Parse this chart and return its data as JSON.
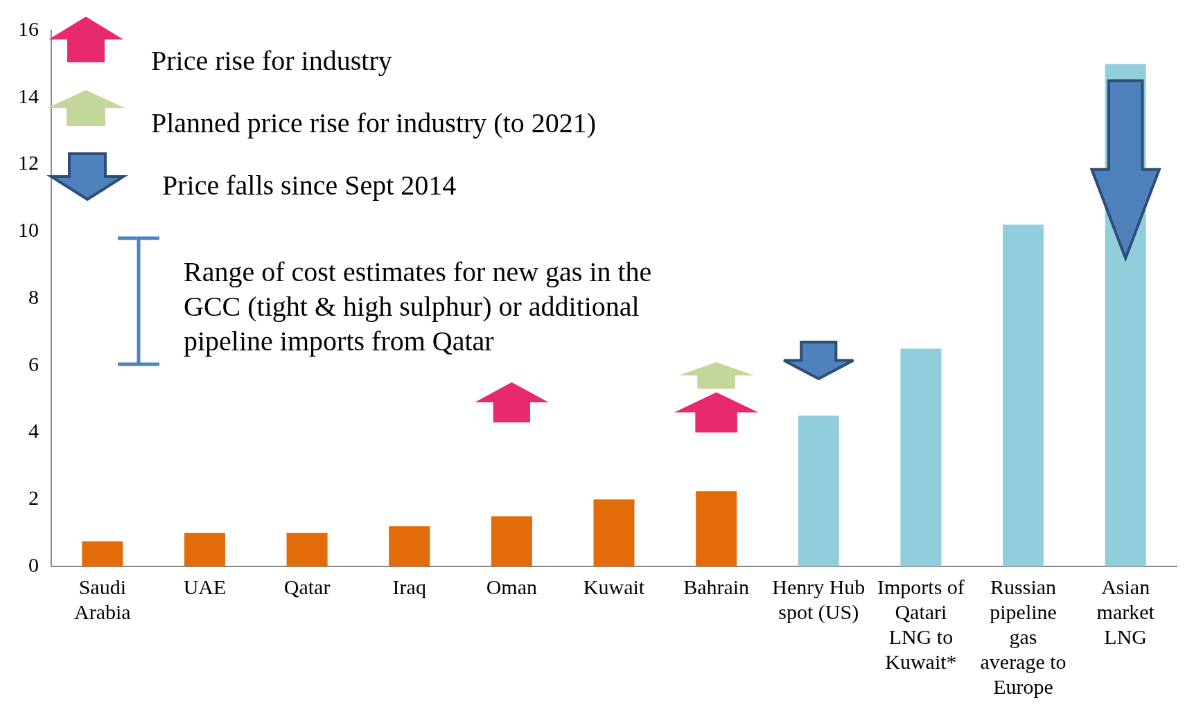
{
  "chart_data": {
    "type": "bar",
    "categories": [
      "Saudi Arabia",
      "UAE",
      "Qatar",
      "Iraq",
      "Oman",
      "Kuwait",
      "Bahrain",
      "Henry Hub spot (US)",
      "Imports of Qatari LNG to Kuwait*",
      "Russian pipeline gas average to Europe",
      "Asian market LNG"
    ],
    "values": [
      0.75,
      1.0,
      1.0,
      1.2,
      1.5,
      2.0,
      2.25,
      4.5,
      6.5,
      10.2,
      15.0
    ],
    "colors": [
      "#e36c0a",
      "#e36c0a",
      "#e36c0a",
      "#e36c0a",
      "#e36c0a",
      "#e36c0a",
      "#e36c0a",
      "#92cddc",
      "#92cddc",
      "#92cddc",
      "#92cddc"
    ],
    "ylim": [
      0,
      16
    ],
    "yticks": [
      0,
      2,
      4,
      6,
      8,
      10,
      12,
      14,
      16
    ],
    "grid": false,
    "legend": false,
    "annotations": [
      "Price rise for industry",
      "Planned price rise for industry (to 2021)",
      "Price falls since Sept 2014",
      "Range of cost estimates for new gas in the GCC (tight & high sulphur) or additional pipeline imports from Qatar"
    ]
  }
}
